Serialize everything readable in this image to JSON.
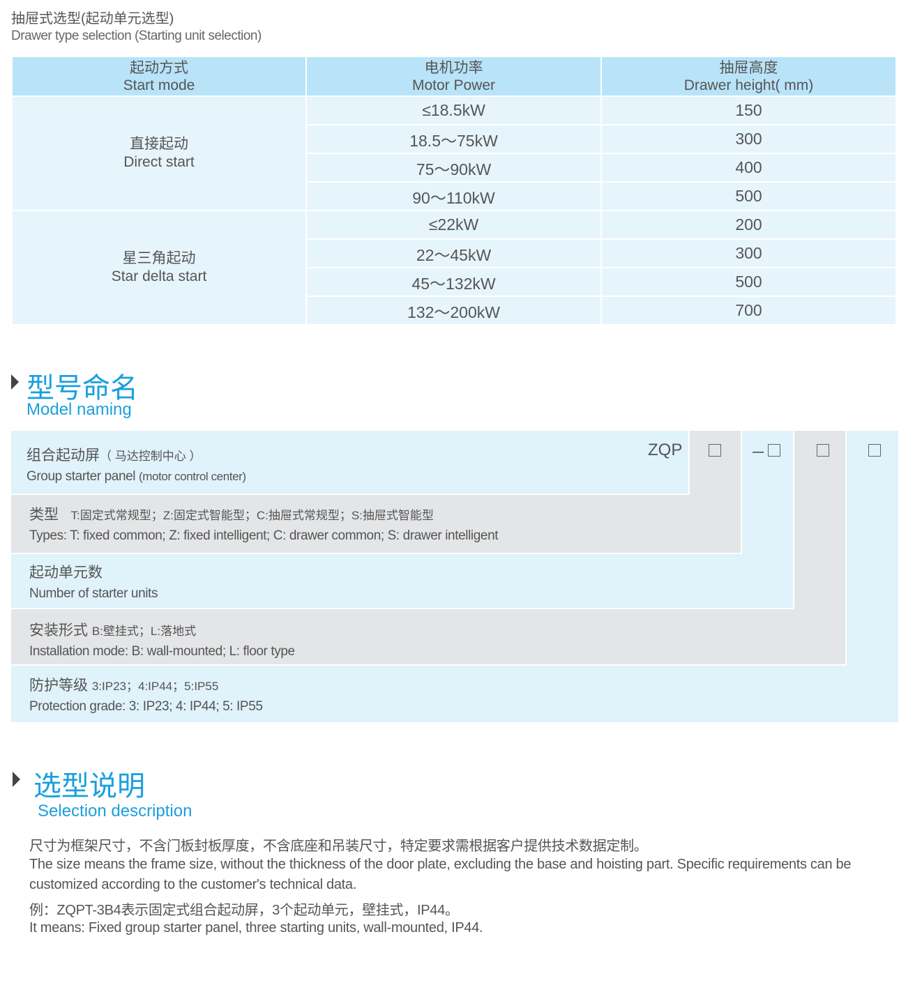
{
  "intro": {
    "title_cn": "抽屉式选型(起动单元选型)",
    "title_en": "Drawer type selection (Starting unit selection)"
  },
  "table": {
    "headers": [
      {
        "cn": "起动方式",
        "en": "Start mode"
      },
      {
        "cn": "电机功率",
        "en": "Motor Power"
      },
      {
        "cn": "抽屉高度",
        "en": "Drawer height( mm)"
      }
    ],
    "groups": [
      {
        "cn": "直接起动",
        "en": "Direct start",
        "rows": [
          {
            "power": "≤18.5kW",
            "height": "150"
          },
          {
            "power": "18.5～75kW",
            "height": "300"
          },
          {
            "power": "75～90kW",
            "height": "400"
          },
          {
            "power": "90～110kW",
            "height": "500"
          }
        ]
      },
      {
        "cn": "星三角起动",
        "en": "Star delta start",
        "rows": [
          {
            "power": "≤22kW",
            "height": "200"
          },
          {
            "power": "22～45kW",
            "height": "300"
          },
          {
            "power": "45～132kW",
            "height": "500"
          },
          {
            "power": "132～200kW",
            "height": "700"
          }
        ]
      }
    ]
  },
  "naming": {
    "title_cn": "型号命名",
    "title_en": "Model naming",
    "prefix": "ZQP",
    "dash": "－",
    "rows": [
      {
        "cn": "组合起动屏",
        "cn_note": "（ 马达控制中心 ）",
        "en": "Group starter panel",
        "en_note": "(motor control center)"
      },
      {
        "cn": "类型",
        "cn_note": "T:固定式常规型；Z:固定式智能型；C:抽屉式常规型；S:抽屉式智能型",
        "en": "Types: T: fixed common; Z: fixed intelligent; C: drawer common; S: drawer intelligent"
      },
      {
        "cn": "起动单元数",
        "en": "Number  of  starter units"
      },
      {
        "cn": "安装形式",
        "cn_note": "B:壁挂式；L:落地式",
        "en": "Installation mode: B: wall-mounted; L: floor type"
      },
      {
        "cn": "防护等级",
        "cn_note": "3:IP23；4:IP44；5:IP55",
        "en": "Protection grade:  3: IP23; 4: IP44; 5: IP55"
      }
    ]
  },
  "selection": {
    "title_cn": "选型说明",
    "title_en": "Selection description",
    "lines": [
      "尺寸为框架尺寸，不含门板封板厚度，不含底座和吊装尺寸，特定要求需根据客户提供技术数据定制。",
      "The size means the frame size, without the thickness of the door plate, excluding the base and hoisting part. Specific requirements can be",
      "customized according to the customer's technical data.",
      "例：ZQPT-3B4表示固定式组合起动屏，3个起动单元，壁挂式，IP44。",
      "It means: Fixed group starter panel, three starting units, wall-mounted, IP44."
    ]
  },
  "colors": {
    "accent": "#1aa0dc",
    "header_bg": "#b8e3f8",
    "cell_bg": "#e6f5fc",
    "panel_blue": "#e0f2fa",
    "panel_gray": "#e4e5e7"
  }
}
